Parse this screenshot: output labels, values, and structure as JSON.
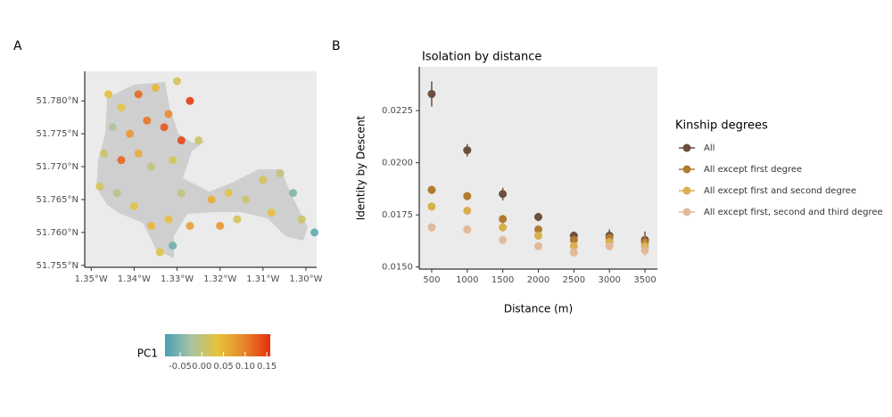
{
  "chart_data": [
    {
      "type": "map",
      "panel_label": "A",
      "xlim": [
        -1.3515,
        -1.2975
      ],
      "ylim": [
        51.7547,
        51.7845
      ],
      "xticks": [
        {
          "value": -1.35,
          "label": "1.35°W"
        },
        {
          "value": -1.34,
          "label": "1.34°W"
        },
        {
          "value": -1.33,
          "label": "1.33°W"
        },
        {
          "value": -1.32,
          "label": "1.32°W"
        },
        {
          "value": -1.31,
          "label": "1.31°W"
        },
        {
          "value": -1.3,
          "label": "1.30°W"
        }
      ],
      "yticks": [
        {
          "value": 51.755,
          "label": "51.755°N"
        },
        {
          "value": 51.76,
          "label": "51.760°N"
        },
        {
          "value": 51.765,
          "label": "51.765°N"
        },
        {
          "value": 51.77,
          "label": "51.770°N"
        },
        {
          "value": 51.775,
          "label": "51.775°N"
        },
        {
          "value": 51.78,
          "label": "51.780°N"
        }
      ],
      "x": [
        -1.339,
        -1.335,
        -1.33,
        -1.327,
        -1.343,
        -1.337,
        -1.333,
        -1.329,
        -1.341,
        -1.345,
        -1.347,
        -1.339,
        -1.343,
        -1.336,
        -1.331,
        -1.325,
        -1.348,
        -1.344,
        -1.34,
        -1.336,
        -1.332,
        -1.331,
        -1.327,
        -1.329,
        -1.322,
        -1.318,
        -1.314,
        -1.31,
        -1.306,
        -1.303,
        -1.301,
        -1.298,
        -1.308,
        -1.316,
        -1.32,
        -1.334,
        -1.332,
        -1.346
      ],
      "y": [
        51.781,
        51.782,
        51.783,
        51.78,
        51.779,
        51.777,
        51.776,
        51.774,
        51.775,
        51.776,
        51.772,
        51.772,
        51.771,
        51.77,
        51.771,
        51.774,
        51.767,
        51.766,
        51.764,
        51.761,
        51.762,
        51.758,
        51.761,
        51.766,
        51.765,
        51.766,
        51.765,
        51.768,
        51.769,
        51.766,
        51.762,
        51.76,
        51.763,
        51.762,
        51.761,
        51.757,
        51.778,
        51.781
      ],
      "color_values": [
        0.12,
        0.05,
        0.02,
        0.15,
        0.03,
        0.11,
        0.13,
        0.14,
        0.08,
        -0.02,
        0.01,
        0.06,
        0.12,
        0.0,
        0.02,
        0.01,
        0.02,
        -0.01,
        0.03,
        0.05,
        0.04,
        -0.06,
        0.07,
        0.0,
        0.06,
        0.03,
        0.01,
        0.02,
        0.0,
        -0.05,
        0.01,
        -0.07,
        0.04,
        0.02,
        0.08,
        0.03,
        0.09,
        0.04
      ],
      "colorbar_label": "PC1",
      "colorbar_lim": [
        -0.085,
        0.158
      ],
      "colorbar_ticks": [
        -0.05,
        {
          "value": 0,
          "label": "0.00"
        },
        0.05,
        {
          "value": 0.1,
          "label": "0.10"
        },
        0.15
      ],
      "colormap": [
        "#4a9fb8",
        "#a9c3a2",
        "#e6c33c",
        "#e9862c",
        "#e2300f"
      ]
    },
    {
      "type": "errorbar",
      "panel_label": "B",
      "title": "Isolation by distance",
      "x_label": "Distance (m)",
      "y_label": "Identity by Descent",
      "legend_title": "Kinship degrees",
      "x": [
        500,
        1000,
        1500,
        2000,
        2500,
        3000,
        3500
      ],
      "xlim": [
        325,
        3675
      ],
      "ylim": [
        0.0149,
        0.0246
      ],
      "xticks": [
        500,
        1000,
        1500,
        2000,
        2500,
        3000,
        3500
      ],
      "yticks": [
        {
          "value": 0.015,
          "label": "0.0150"
        },
        {
          "value": 0.0175,
          "label": "0.0175"
        },
        {
          "value": 0.02,
          "label": "0.0200"
        },
        {
          "value": 0.0225,
          "label": "0.0225"
        }
      ],
      "series": [
        {
          "name": "All",
          "color": "#6b4f3f",
          "values": [
            0.0233,
            0.0206,
            0.0185,
            0.0174,
            0.0165,
            0.0165,
            0.0163
          ],
          "errors": [
            0.0006,
            0.0003,
            0.0003,
            0.0002,
            0.0002,
            0.0003,
            0.0004
          ]
        },
        {
          "name": "All except first degree",
          "color": "#b07a30",
          "values": [
            0.0187,
            0.0184,
            0.0173,
            0.0168,
            0.0163,
            0.0164,
            0.0162
          ],
          "errors": [
            0.0002,
            0.0002,
            0.0002,
            0.0002,
            0.0002,
            0.0002,
            0.0003
          ]
        },
        {
          "name": "All except first and second degree",
          "color": "#d9b04e",
          "values": [
            0.0179,
            0.0177,
            0.0169,
            0.0165,
            0.016,
            0.0162,
            0.016
          ],
          "errors": [
            0.0002,
            0.0002,
            0.0002,
            0.0002,
            0.0002,
            0.0002,
            0.0003
          ]
        },
        {
          "name": "All except first, second and third degree",
          "color": "#e2ba9a",
          "values": [
            0.0169,
            0.0168,
            0.0163,
            0.016,
            0.0157,
            0.016,
            0.0158
          ],
          "errors": [
            0.0002,
            0.0002,
            0.0002,
            0.0002,
            0.0002,
            0.0002,
            0.0003
          ]
        }
      ]
    }
  ]
}
